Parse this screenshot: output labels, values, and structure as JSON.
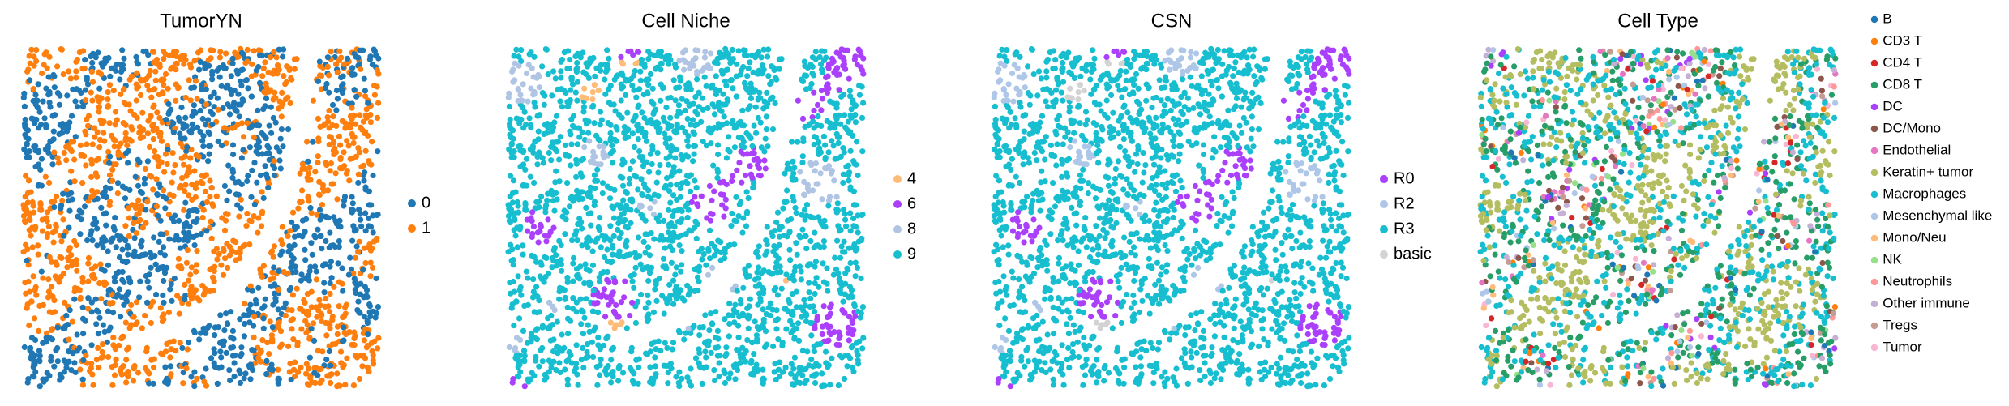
{
  "chart_data": [
    {
      "type": "scatter",
      "title": "TumorYN",
      "series": [
        {
          "name": "0",
          "color": "#1f77b4"
        },
        {
          "name": "1",
          "color": "#ff7f0e"
        }
      ]
    },
    {
      "type": "scatter",
      "title": "Cell Niche",
      "series": [
        {
          "name": "4",
          "color": "#ffbb78"
        },
        {
          "name": "6",
          "color": "#aa40fc"
        },
        {
          "name": "8",
          "color": "#b0c4e3"
        },
        {
          "name": "9",
          "color": "#17becf"
        }
      ]
    },
    {
      "type": "scatter",
      "title": "CSN",
      "series": [
        {
          "name": "R0",
          "color": "#aa40fc"
        },
        {
          "name": "R2",
          "color": "#aec7e8"
        },
        {
          "name": "R3",
          "color": "#17becf"
        },
        {
          "name": "basic",
          "color": "#d3d3d3"
        }
      ]
    },
    {
      "type": "scatter",
      "title": "Cell Type",
      "series": [
        {
          "name": "B",
          "color": "#1f77b4"
        },
        {
          "name": "CD3 T",
          "color": "#ff7f0e"
        },
        {
          "name": "CD4 T",
          "color": "#d62728"
        },
        {
          "name": "CD8 T",
          "color": "#279e68"
        },
        {
          "name": "DC",
          "color": "#aa40fc"
        },
        {
          "name": "DC/Mono",
          "color": "#8c564b"
        },
        {
          "name": "Endothelial",
          "color": "#e377c2"
        },
        {
          "name": "Keratin+ tumor",
          "color": "#b5bd61"
        },
        {
          "name": "Macrophages",
          "color": "#17becf"
        },
        {
          "name": "Mesenchymal like",
          "color": "#aec7e8"
        },
        {
          "name": "Mono/Neu",
          "color": "#ffbb78"
        },
        {
          "name": "NK",
          "color": "#98df8a"
        },
        {
          "name": "Neutrophils",
          "color": "#ff9896"
        },
        {
          "name": "Other immune",
          "color": "#c5b0d5"
        },
        {
          "name": "Tregs",
          "color": "#c49c94"
        },
        {
          "name": "Tumor",
          "color": "#f7b6d2"
        }
      ]
    }
  ]
}
